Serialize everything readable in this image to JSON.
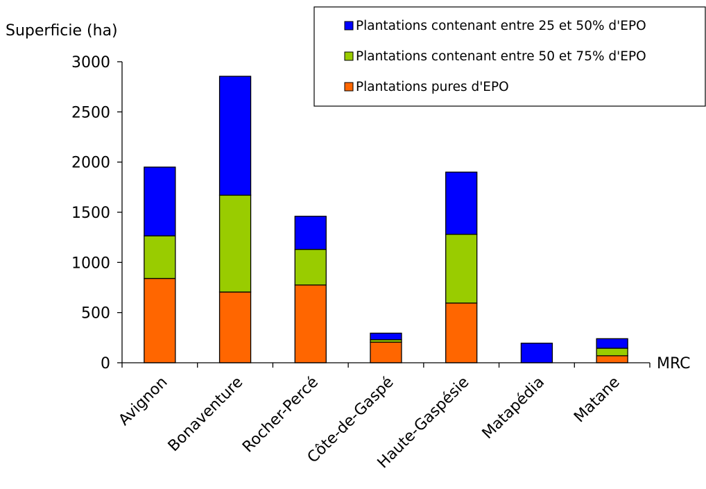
{
  "chart_data": {
    "type": "bar",
    "stacked": true,
    "ylabel": "Superficie (ha)",
    "xlabel": "MRC",
    "ylim": [
      0,
      3000
    ],
    "yticks": [
      0,
      500,
      1000,
      1500,
      2000,
      2500,
      3000
    ],
    "categories": [
      "Avignon",
      "Bonaventure",
      "Rocher-Percé",
      "Côte-de-Gaspé",
      "Haute-Gaspésie",
      "Matapédia",
      "Matane"
    ],
    "series": [
      {
        "name": "Plantations pures d'EPO",
        "color": "#ff6600",
        "values": [
          840,
          705,
          775,
          205,
          595,
          0,
          70
        ]
      },
      {
        "name": "Plantations contenant entre 50 et 75% d'EPO",
        "color": "#99cc00",
        "values": [
          425,
          965,
          355,
          25,
          685,
          0,
          75
        ]
      },
      {
        "name": "Plantations contenant entre 25 et 50% d'EPO",
        "color": "#0000ff",
        "values": [
          685,
          1185,
          330,
          65,
          620,
          195,
          95
        ]
      }
    ],
    "legend": {
      "position": "top-right",
      "order": [
        2,
        1,
        0
      ]
    },
    "grid": false
  }
}
